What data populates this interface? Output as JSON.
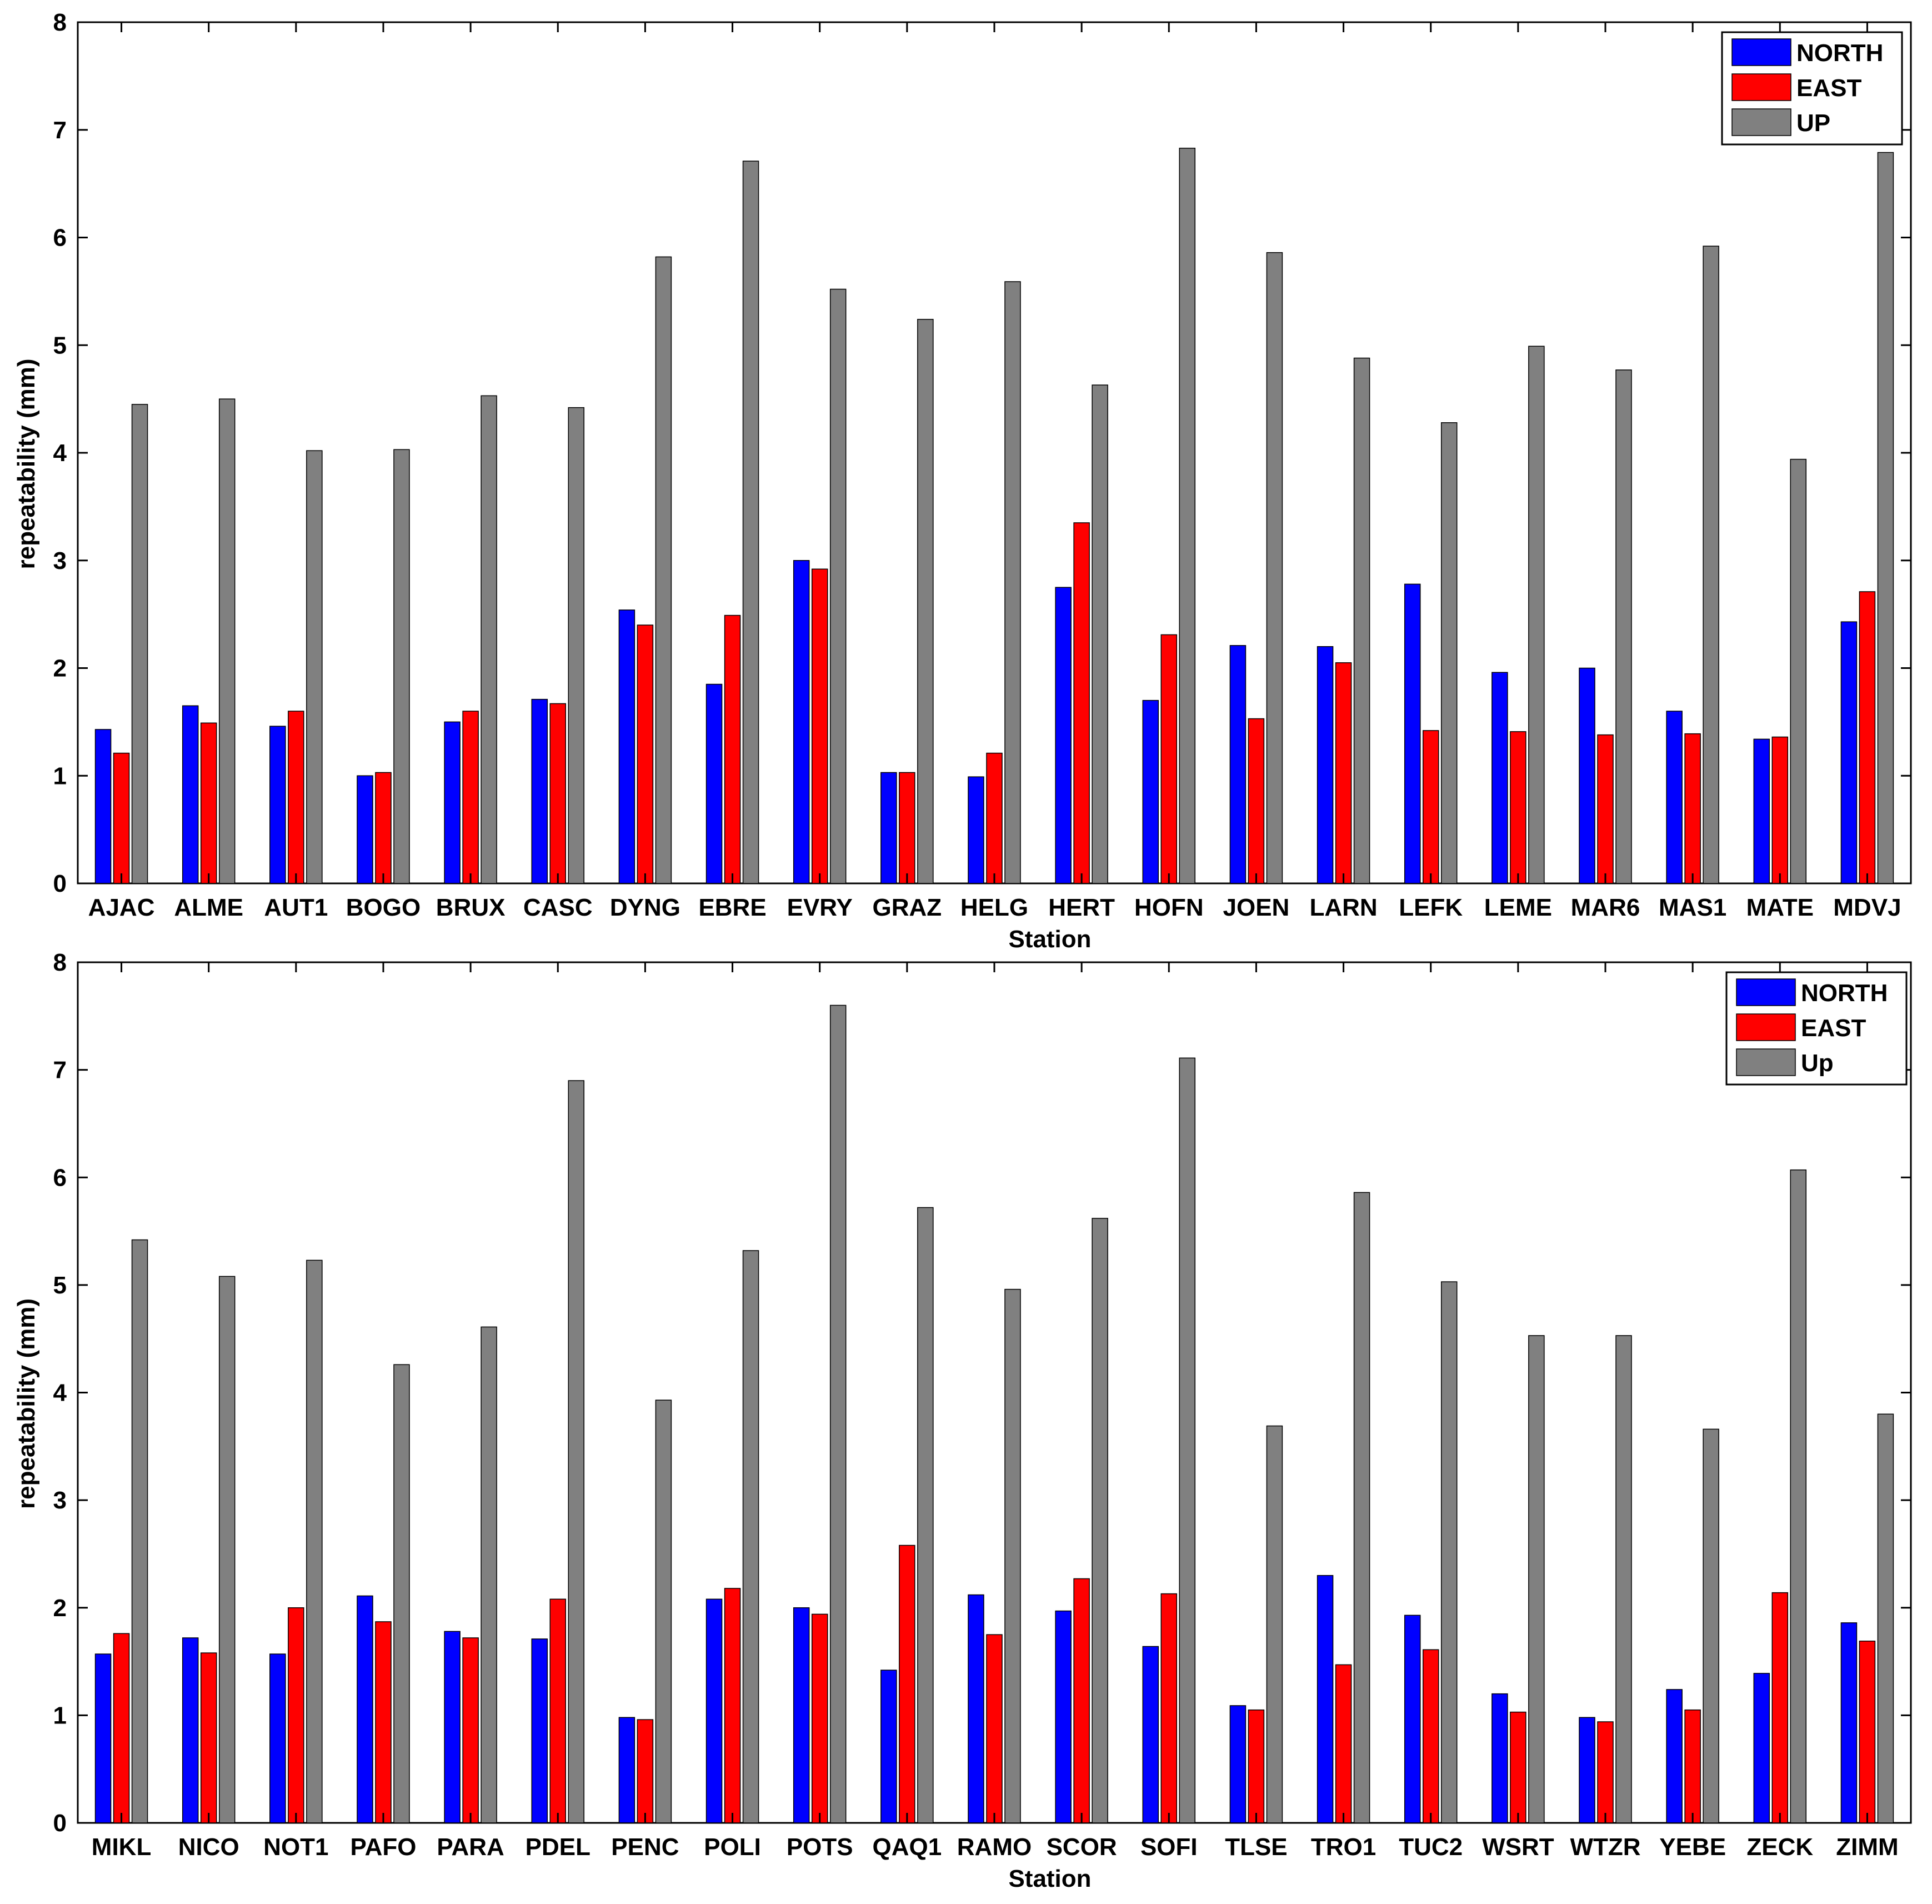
{
  "chart_data": [
    {
      "type": "bar",
      "title": "",
      "xlabel": "Station",
      "ylabel": "repeatability (mm)",
      "ylim": [
        0,
        8
      ],
      "yticks": [
        0,
        1,
        2,
        3,
        4,
        5,
        6,
        7,
        8
      ],
      "legend_position": "top-right",
      "categories": [
        "AJAC",
        "ALME",
        "AUT1",
        "BOGO",
        "BRUX",
        "CASC",
        "DYNG",
        "EBRE",
        "EVRY",
        "GRAZ",
        "HELG",
        "HERT",
        "HOFN",
        "JOEN",
        "LARN",
        "LEFK",
        "LEME",
        "MAR6",
        "MAS1",
        "MATE",
        "MDVJ"
      ],
      "series": [
        {
          "name": "NORTH",
          "color": "#0000ff",
          "values": [
            1.43,
            1.65,
            1.46,
            1.0,
            1.5,
            1.71,
            2.54,
            1.85,
            3.0,
            1.03,
            0.99,
            2.75,
            1.7,
            2.21,
            2.2,
            2.78,
            1.96,
            2.0,
            1.6,
            1.34,
            2.43
          ]
        },
        {
          "name": "EAST",
          "color": "#ff0000",
          "values": [
            1.21,
            1.49,
            1.6,
            1.03,
            1.6,
            1.67,
            2.4,
            2.49,
            2.92,
            1.03,
            1.21,
            3.35,
            2.31,
            1.53,
            2.05,
            1.42,
            1.41,
            1.38,
            1.39,
            1.36,
            2.71
          ]
        },
        {
          "name": "UP",
          "color": "#808080",
          "values": [
            4.45,
            4.5,
            4.02,
            4.03,
            4.53,
            4.42,
            5.82,
            6.71,
            5.52,
            5.24,
            5.59,
            4.63,
            6.83,
            5.86,
            4.88,
            4.28,
            4.99,
            4.77,
            5.92,
            3.94,
            6.79
          ]
        }
      ]
    },
    {
      "type": "bar",
      "title": "",
      "xlabel": "Station",
      "ylabel": "repeatability (mm)",
      "ylim": [
        0,
        8
      ],
      "yticks": [
        0,
        1,
        2,
        3,
        4,
        5,
        6,
        7,
        8
      ],
      "legend_position": "top-right",
      "categories": [
        "MIKL",
        "NICO",
        "NOT1",
        "PAFO",
        "PARA",
        "PDEL",
        "PENC",
        "POLI",
        "POTS",
        "QAQ1",
        "RAMO",
        "SCOR",
        "SOFI",
        "TLSE",
        "TRO1",
        "TUC2",
        "WSRT",
        "WTZR",
        "YEBE",
        "ZECK",
        "ZIMM"
      ],
      "series": [
        {
          "name": "NORTH",
          "color": "#0000ff",
          "values": [
            1.57,
            1.72,
            1.57,
            2.11,
            1.78,
            1.71,
            0.98,
            2.08,
            2.0,
            1.42,
            2.12,
            1.97,
            1.64,
            1.09,
            2.3,
            1.93,
            1.2,
            0.98,
            1.24,
            1.39,
            1.86
          ]
        },
        {
          "name": "EAST",
          "color": "#ff0000",
          "values": [
            1.76,
            1.58,
            2.0,
            1.87,
            1.72,
            2.08,
            0.96,
            2.18,
            1.94,
            2.58,
            1.75,
            2.27,
            2.13,
            1.05,
            1.47,
            1.61,
            1.03,
            0.94,
            1.05,
            2.14,
            1.69
          ]
        },
        {
          "name": "Up",
          "color": "#808080",
          "values": [
            5.42,
            5.08,
            5.23,
            4.26,
            4.61,
            6.9,
            3.93,
            5.32,
            7.6,
            5.72,
            4.96,
            5.62,
            7.11,
            3.69,
            5.86,
            5.03,
            4.53,
            4.53,
            3.66,
            6.07,
            3.8
          ]
        }
      ]
    }
  ]
}
